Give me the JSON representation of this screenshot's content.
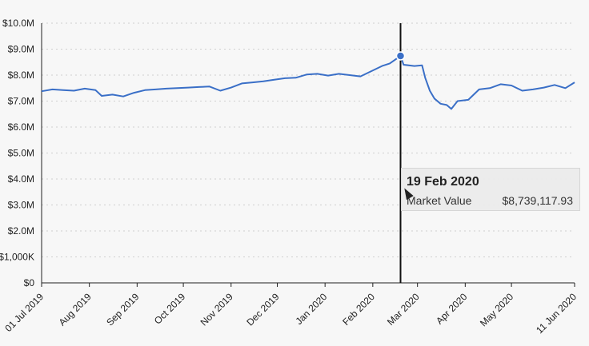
{
  "chart_data": {
    "type": "line",
    "title": "",
    "xlabel": "",
    "ylabel": "",
    "x_tick_labels": [
      "01 Jul 2019",
      "Aug 2019",
      "Sep 2019",
      "Oct 2019",
      "Nov 2019",
      "Dec 2019",
      "Jan 2020",
      "Feb 2020",
      "Mar 2020",
      "Apr 2020",
      "May 2020",
      "11 Jun 2020"
    ],
    "x_tick_dates": [
      "2019-07-01",
      "2019-08-01",
      "2019-09-01",
      "2019-10-01",
      "2019-11-01",
      "2019-12-01",
      "2020-01-01",
      "2020-02-01",
      "2020-03-01",
      "2020-04-01",
      "2020-05-01",
      "2020-06-11"
    ],
    "xlim": [
      "2019-07-01",
      "2020-06-11"
    ],
    "y_tick_labels": [
      "$0",
      "$1,000K",
      "$2.0M",
      "$3.0M",
      "$4.0M",
      "$5.0M",
      "$6.0M",
      "$7.0M",
      "$8.0M",
      "$9.0M",
      "$10.0M"
    ],
    "ylim": [
      0,
      10000000
    ],
    "grid": "horizontal-dotted",
    "line_color": "#3a6fc7",
    "series": [
      {
        "name": "Market Value",
        "points": [
          [
            "2019-07-01",
            7380000
          ],
          [
            "2019-07-08",
            7450000
          ],
          [
            "2019-07-15",
            7420000
          ],
          [
            "2019-07-22",
            7400000
          ],
          [
            "2019-07-29",
            7480000
          ],
          [
            "2019-08-05",
            7420000
          ],
          [
            "2019-08-09",
            7200000
          ],
          [
            "2019-08-16",
            7250000
          ],
          [
            "2019-08-23",
            7180000
          ],
          [
            "2019-08-30",
            7320000
          ],
          [
            "2019-09-06",
            7420000
          ],
          [
            "2019-09-13",
            7450000
          ],
          [
            "2019-09-20",
            7480000
          ],
          [
            "2019-09-27",
            7500000
          ],
          [
            "2019-10-04",
            7520000
          ],
          [
            "2019-10-11",
            7540000
          ],
          [
            "2019-10-18",
            7560000
          ],
          [
            "2019-10-25",
            7400000
          ],
          [
            "2019-11-01",
            7520000
          ],
          [
            "2019-11-08",
            7680000
          ],
          [
            "2019-11-15",
            7720000
          ],
          [
            "2019-11-22",
            7760000
          ],
          [
            "2019-11-29",
            7820000
          ],
          [
            "2019-12-06",
            7880000
          ],
          [
            "2019-12-13",
            7900000
          ],
          [
            "2019-12-20",
            8020000
          ],
          [
            "2019-12-27",
            8050000
          ],
          [
            "2020-01-03",
            7980000
          ],
          [
            "2020-01-10",
            8050000
          ],
          [
            "2020-01-17",
            8000000
          ],
          [
            "2020-01-24",
            7950000
          ],
          [
            "2020-01-31",
            8150000
          ],
          [
            "2020-02-07",
            8350000
          ],
          [
            "2020-02-12",
            8450000
          ],
          [
            "2020-02-19",
            8739117.93
          ],
          [
            "2020-02-21",
            8400000
          ],
          [
            "2020-02-28",
            8350000
          ],
          [
            "2020-03-04",
            8380000
          ],
          [
            "2020-03-06",
            7900000
          ],
          [
            "2020-03-09",
            7400000
          ],
          [
            "2020-03-12",
            7100000
          ],
          [
            "2020-03-16",
            6900000
          ],
          [
            "2020-03-20",
            6850000
          ],
          [
            "2020-03-23",
            6700000
          ],
          [
            "2020-03-27",
            7000000
          ],
          [
            "2020-04-03",
            7050000
          ],
          [
            "2020-04-10",
            7450000
          ],
          [
            "2020-04-17",
            7500000
          ],
          [
            "2020-04-24",
            7650000
          ],
          [
            "2020-05-01",
            7600000
          ],
          [
            "2020-05-08",
            7400000
          ],
          [
            "2020-05-15",
            7450000
          ],
          [
            "2020-05-22",
            7520000
          ],
          [
            "2020-05-29",
            7620000
          ],
          [
            "2020-06-05",
            7500000
          ],
          [
            "2020-06-11",
            7720000
          ]
        ]
      }
    ],
    "highlight": {
      "date": "2020-02-19",
      "value": 8739117.93
    }
  },
  "tooltip": {
    "date_label": "19 Feb 2020",
    "series_label": "Market Value",
    "value_label": "$8,739,117.93"
  }
}
